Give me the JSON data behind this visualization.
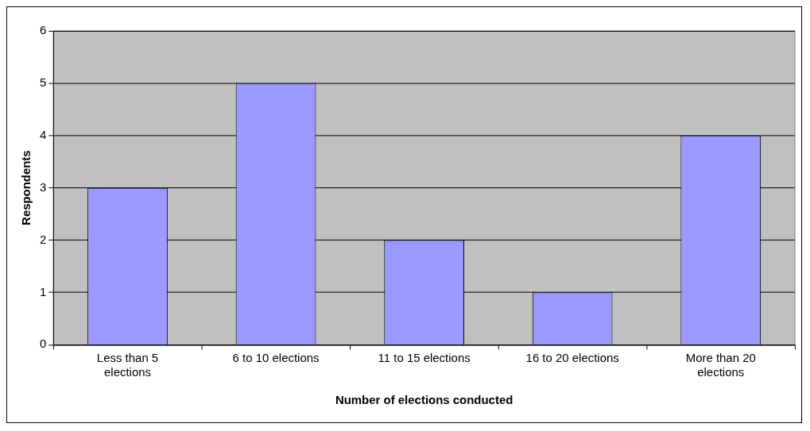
{
  "chart_data": {
    "type": "bar",
    "xlabel": "Number of elections conducted",
    "ylabel": "Respondents",
    "categories": [
      "Less than 5 elections",
      "6 to 10 elections",
      "11 to 15 elections",
      "16 to 20 elections",
      "More than 20 elections"
    ],
    "values": [
      3,
      5,
      2,
      1,
      4
    ],
    "color": "#9999ff",
    "ylim": [
      0,
      6
    ],
    "yticks": [
      0,
      1,
      2,
      3,
      4,
      5,
      6
    ],
    "grid": "y",
    "legend": false
  }
}
